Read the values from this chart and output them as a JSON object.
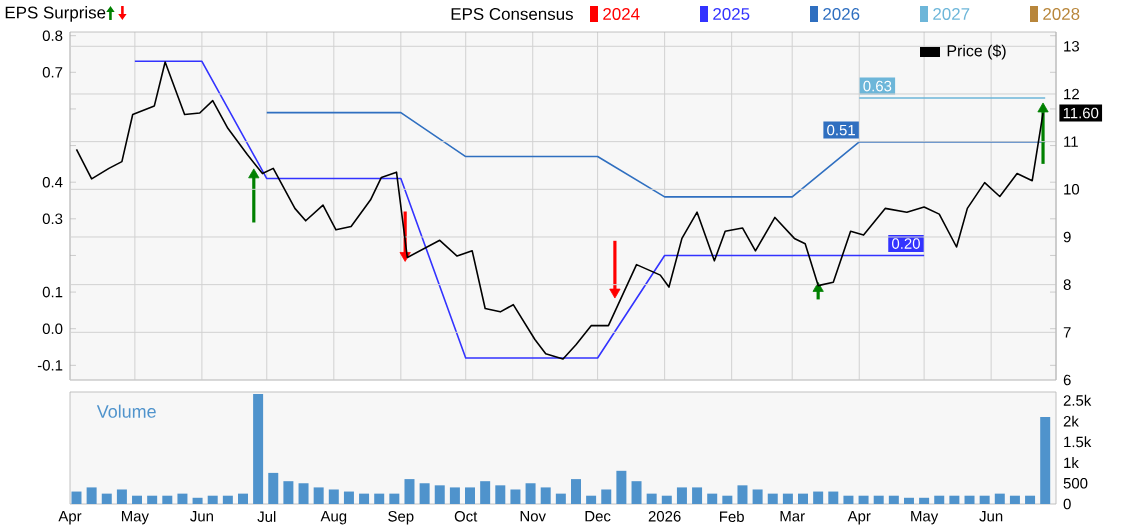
{
  "chart_data": [
    {
      "type": "line",
      "ylabel": "EPS Surprise",
      "legend_title": "EPS Consensus",
      "legend": "top",
      "grid": true,
      "tick_labels": "y",
      "xlim": [
        "2025-04-01",
        "2026-07-01"
      ],
      "xticks": [
        {
          "value": "2025-04-01",
          "label": null
        },
        {
          "value": "2025-05-01",
          "label": null
        },
        {
          "value": "2025-06-01",
          "label": null
        },
        {
          "value": "2025-07-01",
          "label": null
        },
        {
          "value": "2025-08-01",
          "label": null
        },
        {
          "value": "2025-09-01",
          "label": null
        },
        {
          "value": "2025-10-01",
          "label": null
        },
        {
          "value": "2025-11-01",
          "label": null
        },
        {
          "value": "2025-12-01",
          "label": null
        },
        {
          "value": "2026-01-01",
          "label": null
        },
        {
          "value": "2026-02-01",
          "label": null
        },
        {
          "value": "2026-03-01",
          "label": null
        },
        {
          "value": "2026-04-01",
          "label": null
        },
        {
          "value": "2026-05-01",
          "label": null
        },
        {
          "value": "2026-06-01",
          "label": null
        }
      ],
      "ylim": [
        -0.14,
        0.81
      ],
      "yticks": [
        -0.1,
        {
          "value": 0,
          "label": "0.0"
        },
        0.1,
        {
          "value": 0.2,
          "label": null
        },
        0.3,
        0.4,
        {
          "value": 0.5,
          "label": null
        },
        {
          "value": 0.6,
          "label": null
        },
        0.7,
        0.8
      ],
      "y2lim": [
        6,
        13.3
      ],
      "y2ticks": [
        6,
        7,
        8,
        9,
        10,
        11,
        12,
        13
      ],
      "series": [
        {
          "name": "2024",
          "color": "#ff0000"
        },
        {
          "name": "2025",
          "color": "#3333ff",
          "x": [
            "2025-05-01",
            "2025-06-01",
            "2025-07-01",
            "2025-09-01",
            "2025-10-01",
            "2025-12-01",
            "2026-01-01",
            "2026-05-01"
          ],
          "values": [
            0.73,
            0.73,
            0.41,
            0.41,
            -0.08,
            -0.08,
            0.2,
            0.2
          ],
          "value_labels": [
            null,
            null,
            null,
            null,
            null,
            null,
            null,
            "0.20"
          ]
        },
        {
          "name": "2026",
          "color": "#2f6fc0",
          "x": [
            "2025-07-01",
            "2025-09-01",
            "2025-10-01",
            "2025-12-01",
            "2026-01-01",
            "2026-03-01",
            "2026-04-01",
            "2026-06-26"
          ],
          "values": [
            0.59,
            0.59,
            0.47,
            0.47,
            0.36,
            0.36,
            0.51,
            0.51
          ],
          "value_labels": [
            null,
            null,
            null,
            null,
            null,
            null,
            "0.51",
            null
          ]
        },
        {
          "name": "2027",
          "color": "#6db6d9",
          "x": [
            "2026-04-01",
            "2026-06-26"
          ],
          "values": [
            0.63,
            0.63
          ],
          "value_labels": [
            "0.63",
            null
          ]
        },
        {
          "name": "2028",
          "color": "#b8863b"
        },
        {
          "name": "Price ($)",
          "color": "#000000",
          "axis": "y2",
          "x": [
            "2025-04-04",
            "2025-04-11",
            "2025-04-19",
            "2025-04-25",
            "2025-04-30",
            "2025-05-10",
            "2025-05-15",
            "2025-05-24",
            "2025-05-31",
            "2025-06-06",
            "2025-06-13",
            "2025-06-22",
            "2025-06-29",
            "2025-07-04",
            "2025-07-14",
            "2025-07-19",
            "2025-07-27",
            "2025-08-02",
            "2025-08-09",
            "2025-08-18",
            "2025-08-23",
            "2025-08-30",
            "2025-09-04",
            "2025-09-19",
            "2025-09-27",
            "2025-10-04",
            "2025-10-10",
            "2025-10-17",
            "2025-10-23",
            "2025-11-02",
            "2025-11-07",
            "2025-11-15",
            "2025-11-21",
            "2025-11-28",
            "2025-12-06",
            "2025-12-19",
            "2025-12-30",
            "2026-01-03",
            "2026-01-09",
            "2026-01-16",
            "2026-01-24",
            "2026-01-29",
            "2026-02-06",
            "2026-02-12",
            "2026-02-21",
            "2026-03-02",
            "2026-03-07",
            "2026-03-13",
            "2026-03-20",
            "2026-03-28",
            "2026-04-03",
            "2026-04-13",
            "2026-04-23",
            "2026-05-01",
            "2026-05-08",
            "2026-05-16",
            "2026-05-21",
            "2026-05-29",
            "2026-06-05",
            "2026-06-13",
            "2026-06-20",
            "2026-06-25"
          ],
          "values": [
            10.84,
            10.22,
            10.44,
            10.58,
            11.57,
            11.75,
            12.67,
            11.57,
            11.6,
            11.86,
            11.28,
            10.73,
            10.33,
            10.44,
            9.6,
            9.34,
            9.67,
            9.15,
            9.22,
            9.78,
            10.25,
            10.36,
            8.57,
            8.93,
            8.6,
            8.71,
            7.5,
            7.43,
            7.58,
            6.85,
            6.55,
            6.44,
            6.74,
            7.14,
            7.14,
            8.42,
            8.2,
            7.95,
            8.97,
            9.52,
            8.5,
            9.12,
            9.19,
            8.71,
            9.41,
            8.97,
            8.86,
            7.98,
            8.05,
            9.12,
            9.04,
            9.6,
            9.52,
            9.63,
            9.48,
            8.79,
            9.6,
            10.14,
            9.85,
            10.33,
            10.18,
            11.6
          ],
          "value_labels": [
            null,
            null,
            null,
            null,
            null,
            null,
            null,
            null,
            null,
            null,
            null,
            null,
            null,
            null,
            null,
            null,
            null,
            null,
            null,
            null,
            null,
            null,
            null,
            null,
            null,
            null,
            null,
            null,
            null,
            null,
            null,
            null,
            null,
            null,
            null,
            null,
            null,
            null,
            null,
            null,
            null,
            null,
            null,
            null,
            null,
            null,
            null,
            null,
            null,
            null,
            null,
            null,
            null,
            null,
            null,
            null,
            null,
            null,
            null,
            null,
            null,
            "11.60"
          ]
        },
        {
          "type": "scatter",
          "color": "#008000",
          "marker": "triangle",
          "x": [
            "2025-06-25",
            "2026-03-13",
            "2026-06-25"
          ],
          "values": [
            0.42,
            0.11,
            0.6
          ],
          "errors": [
            [
              0.29,
              0.42
            ],
            [
              0.08,
              0.11
            ],
            [
              0.45,
              0.6
            ]
          ]
        },
        {
          "type": "scatter",
          "color": "#ff0000",
          "marker": "triangle",
          "x": [
            "2025-09-03",
            "2025-12-09"
          ],
          "values": [
            0.2,
            0.1
          ],
          "errors": [
            [
              0.2,
              0.32
            ],
            [
              0.1,
              0.24
            ]
          ]
        }
      ]
    },
    {
      "type": "bar",
      "title": "Volume",
      "color": "#4f93cc",
      "xlim": [
        "2025-04-01",
        "2026-07-01"
      ],
      "xticks": [
        {
          "value": "2025-04-01",
          "label": "Apr"
        },
        {
          "value": "2025-05-01",
          "label": "May"
        },
        {
          "value": "2025-06-01",
          "label": "Jun"
        },
        {
          "value": "2025-07-01",
          "label": "Jul"
        },
        {
          "value": "2025-08-01",
          "label": "Aug"
        },
        {
          "value": "2025-09-01",
          "label": "Sep"
        },
        {
          "value": "2025-10-01",
          "label": "Oct"
        },
        {
          "value": "2025-11-01",
          "label": "Nov"
        },
        {
          "value": "2025-12-01",
          "label": "Dec"
        },
        {
          "value": "2026-01-01",
          "label": "2026"
        },
        {
          "value": "2026-02-01",
          "label": "Feb"
        },
        {
          "value": "2026-03-01",
          "label": "Mar"
        },
        {
          "value": "2026-04-01",
          "label": "Apr"
        },
        {
          "value": "2026-05-01",
          "label": "May"
        },
        {
          "value": "2026-06-01",
          "label": "Jun"
        }
      ],
      "ylim": [
        0,
        2700
      ],
      "yticks": [
        0,
        500,
        {
          "value": 1000,
          "label": "1k"
        },
        {
          "value": 1500,
          "label": "1.5k"
        },
        {
          "value": 2000,
          "label": "2k"
        },
        {
          "value": 2500,
          "label": "2.5k"
        }
      ],
      "x": [
        "2025-04-04",
        "2025-04-11",
        "2025-04-18",
        "2025-04-25",
        "2025-05-02",
        "2025-05-09",
        "2025-05-16",
        "2025-05-23",
        "2025-05-30",
        "2025-06-06",
        "2025-06-13",
        "2025-06-20",
        "2025-06-27",
        "2025-07-04",
        "2025-07-11",
        "2025-07-18",
        "2025-07-25",
        "2025-08-01",
        "2025-08-08",
        "2025-08-15",
        "2025-08-22",
        "2025-08-29",
        "2025-09-05",
        "2025-09-12",
        "2025-09-19",
        "2025-09-26",
        "2025-10-03",
        "2025-10-10",
        "2025-10-17",
        "2025-10-24",
        "2025-10-31",
        "2025-11-07",
        "2025-11-14",
        "2025-11-21",
        "2025-11-28",
        "2025-12-05",
        "2025-12-12",
        "2025-12-19",
        "2025-12-26",
        "2026-01-02",
        "2026-01-09",
        "2026-01-16",
        "2026-01-23",
        "2026-01-30",
        "2026-02-06",
        "2026-02-13",
        "2026-02-20",
        "2026-02-27",
        "2026-03-06",
        "2026-03-13",
        "2026-03-20",
        "2026-03-27",
        "2026-04-03",
        "2026-04-10",
        "2026-04-17",
        "2026-04-24",
        "2026-05-01",
        "2026-05-08",
        "2026-05-15",
        "2026-05-22",
        "2026-05-29",
        "2026-06-05",
        "2026-06-12",
        "2026-06-19",
        "2026-06-26"
      ],
      "values": [
        300,
        400,
        250,
        350,
        200,
        200,
        200,
        250,
        150,
        200,
        200,
        250,
        2650,
        750,
        550,
        500,
        400,
        350,
        300,
        250,
        250,
        250,
        600,
        500,
        450,
        400,
        400,
        550,
        450,
        350,
        500,
        400,
        250,
        600,
        200,
        350,
        800,
        550,
        250,
        200,
        400,
        400,
        250,
        200,
        450,
        350,
        250,
        250,
        250,
        300,
        300,
        200,
        200,
        200,
        200,
        150,
        150,
        200,
        200,
        200,
        200,
        250,
        200,
        200,
        2100
      ]
    }
  ]
}
